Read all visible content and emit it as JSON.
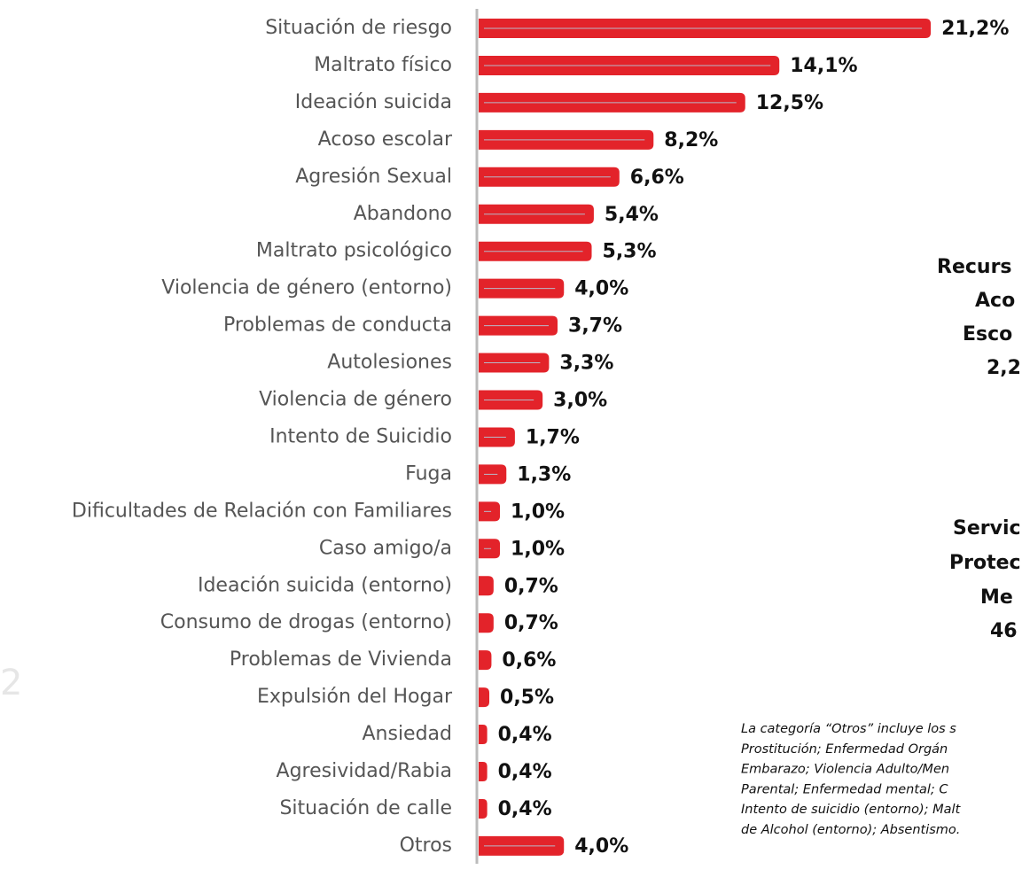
{
  "chart_data": {
    "type": "bar",
    "orientation": "horizontal",
    "categories": [
      "Situación de riesgo",
      "Maltrato físico",
      "Ideación suicida",
      "Acoso escolar",
      "Agresión Sexual",
      "Abandono",
      "Maltrato psicológico",
      "Violencia de género (entorno)",
      "Problemas de conducta",
      "Autolesiones",
      "Violencia de género",
      "Intento de Suicidio",
      "Fuga",
      "Dificultades de Relación con Familiares",
      "Caso amigo/a",
      "Ideación suicida (entorno)",
      "Consumo de drogas (entorno)",
      "Problemas de Vivienda",
      "Expulsión del Hogar",
      "Ansiedad",
      "Agresividad/Rabia",
      "Situación de calle",
      "Otros"
    ],
    "values": [
      21.2,
      14.1,
      12.5,
      8.2,
      6.6,
      5.4,
      5.3,
      4.0,
      3.7,
      3.3,
      3.0,
      1.7,
      1.3,
      1.0,
      1.0,
      0.7,
      0.7,
      0.6,
      0.5,
      0.4,
      0.4,
      0.4,
      4.0
    ],
    "value_labels": [
      "21,2%",
      "14,1%",
      "12,5%",
      "8,2%",
      "6,6%",
      "5,4%",
      "5,3%",
      "4,0%",
      "3,7%",
      "3,3%",
      "3,0%",
      "1,7%",
      "1,3%",
      "1,0%",
      "1,0%",
      "0,7%",
      "0,7%",
      "0,6%",
      "0,5%",
      "0,4%",
      "0,4%",
      "0,4%",
      "4,0%"
    ],
    "color": "#e3232a",
    "annotations": [
      "Recurs",
      "Aco",
      "Esco",
      "2,2",
      "Servic",
      "Protec",
      "Me",
      "46"
    ],
    "note": [
      "La categoría “Otros” incluye los s",
      "Prostitución; Enfermedad Orgán",
      "Embarazo; Violencia Adulto/Men",
      "Parental; Enfermedad mental; C",
      "Intento de suicidio (entorno); Malt",
      "de Alcohol (entorno); Absentismo."
    ],
    "page_number": "2"
  }
}
